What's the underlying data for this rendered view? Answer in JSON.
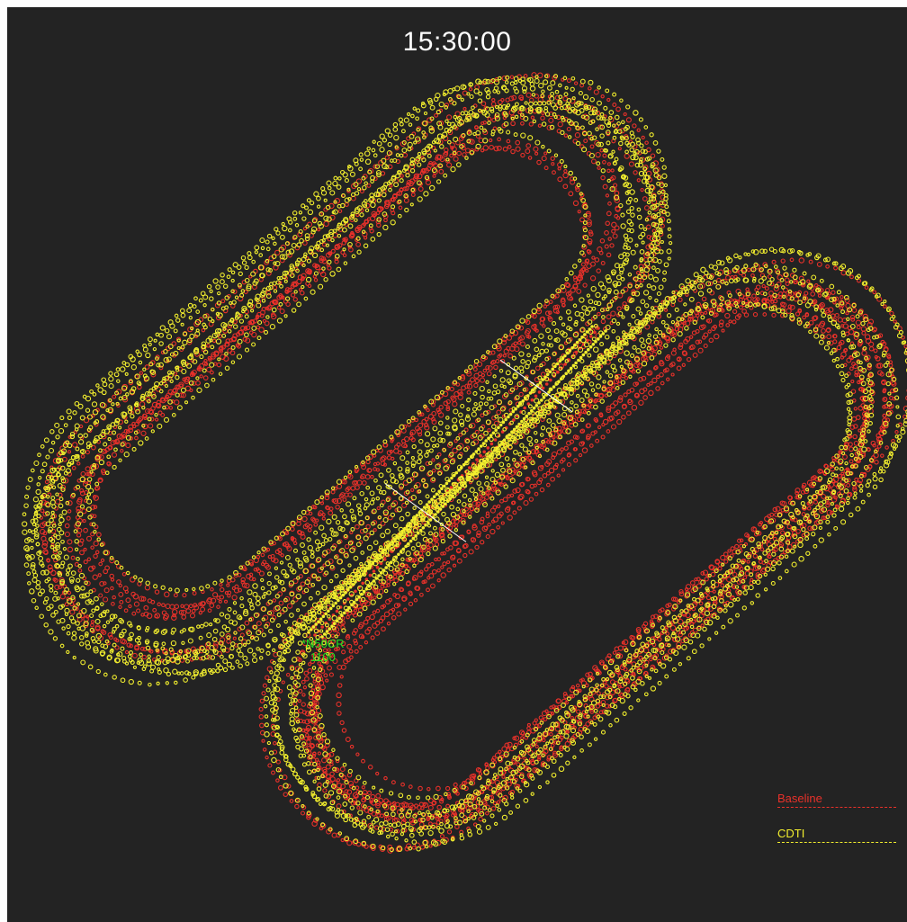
{
  "clock": "15:30:00",
  "aircraft": {
    "callsign": "*N50CR",
    "altitude": "1100"
  },
  "legend": [
    {
      "label": "Baseline",
      "color": "#e8312a"
    },
    {
      "label": "CDTI",
      "color": "#f2ee2e"
    }
  ],
  "colors": {
    "background": "#232323",
    "runway": "#ffffff",
    "label": "#22e022"
  }
}
